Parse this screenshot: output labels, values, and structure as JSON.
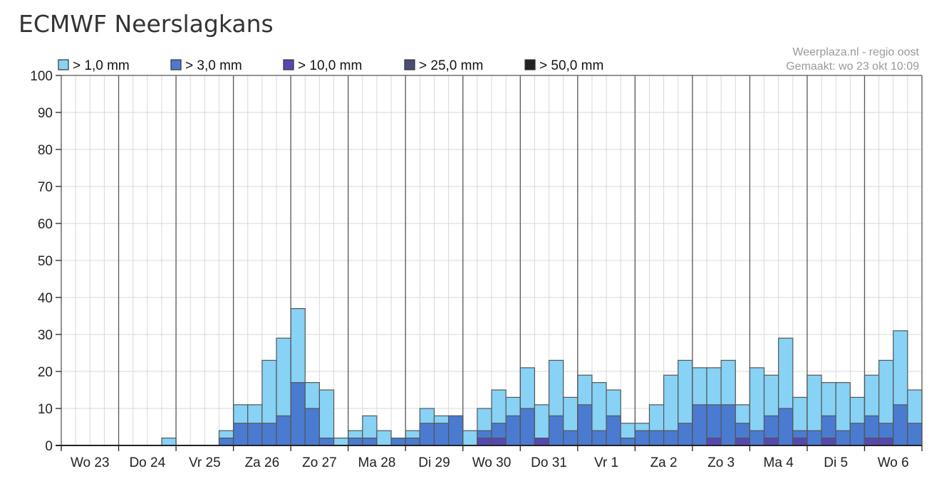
{
  "page": {
    "title": "ECMWF Neerslagkans"
  },
  "chart_data": {
    "type": "bar",
    "stacked": true,
    "title": "",
    "xlabel": "",
    "ylabel": "",
    "ylim": [
      0,
      100
    ],
    "y_ticks": [
      0,
      10,
      20,
      30,
      40,
      50,
      60,
      70,
      80,
      90,
      100
    ],
    "grid": true,
    "legend_position": "top-left",
    "source": "Weerplaza.nl - regio oost",
    "made": "Gemaakt: wo 23 okt 10:09",
    "periods_per_day": 4,
    "day_labels": [
      "Wo 23",
      "Do 24",
      "Vr 25",
      "Za 26",
      "Zo 27",
      "Ma 28",
      "Di 29",
      "Wo 30",
      "Do 31",
      "Vr 1",
      "Za 2",
      "Zo 3",
      "Ma 4",
      "Di 5",
      "Wo 6"
    ],
    "series": [
      {
        "name": "> 1,0 mm",
        "color": "#87d2f5",
        "values": [
          0,
          0,
          0,
          0,
          0,
          0,
          0,
          2,
          0,
          0,
          0,
          4,
          11,
          11,
          23,
          29,
          37,
          17,
          15,
          2,
          4,
          8,
          4,
          2,
          4,
          10,
          8,
          8,
          4,
          10,
          15,
          13,
          21,
          11,
          23,
          13,
          19,
          17,
          15,
          6,
          6,
          11,
          19,
          23,
          21,
          21,
          23,
          11,
          21,
          19,
          29,
          13,
          19,
          17,
          17,
          13,
          19,
          23,
          31,
          15
        ]
      },
      {
        "name": "> 3,0 mm",
        "color": "#4a7bd0",
        "values": [
          0,
          0,
          0,
          0,
          0,
          0,
          0,
          0,
          0,
          0,
          0,
          2,
          6,
          6,
          6,
          8,
          17,
          10,
          2,
          0,
          2,
          2,
          0,
          2,
          2,
          6,
          6,
          8,
          0,
          4,
          6,
          8,
          10,
          2,
          8,
          4,
          11,
          4,
          8,
          2,
          4,
          4,
          4,
          6,
          11,
          11,
          11,
          6,
          4,
          8,
          10,
          4,
          4,
          8,
          4,
          6,
          8,
          6,
          11,
          6
        ]
      },
      {
        "name": "> 10,0 mm",
        "color": "#5548b0",
        "values": [
          0,
          0,
          0,
          0,
          0,
          0,
          0,
          0,
          0,
          0,
          0,
          0,
          0,
          0,
          0,
          0,
          0,
          0,
          0,
          0,
          0,
          0,
          0,
          0,
          0,
          0,
          0,
          0,
          0,
          2,
          2,
          0,
          0,
          2,
          0,
          0,
          0,
          0,
          0,
          0,
          0,
          0,
          0,
          0,
          0,
          2,
          0,
          2,
          0,
          2,
          0,
          2,
          0,
          2,
          0,
          0,
          2,
          2,
          0,
          0
        ]
      },
      {
        "name": "> 25,0 mm",
        "color": "#4c4c78",
        "values": [
          0,
          0,
          0,
          0,
          0,
          0,
          0,
          0,
          0,
          0,
          0,
          0,
          0,
          0,
          0,
          0,
          0,
          0,
          0,
          0,
          0,
          0,
          0,
          0,
          0,
          0,
          0,
          0,
          0,
          0,
          0,
          0,
          0,
          0,
          0,
          0,
          0,
          0,
          0,
          0,
          0,
          0,
          0,
          0,
          0,
          0,
          0,
          0,
          0,
          0,
          0,
          0,
          0,
          0,
          0,
          0,
          0,
          0,
          0,
          0
        ]
      },
      {
        "name": "> 50,0 mm",
        "color": "#222222",
        "values": [
          0,
          0,
          0,
          0,
          0,
          0,
          0,
          0,
          0,
          0,
          0,
          0,
          0,
          0,
          0,
          0,
          0,
          0,
          0,
          0,
          0,
          0,
          0,
          0,
          0,
          0,
          0,
          0,
          0,
          0,
          0,
          0,
          0,
          0,
          0,
          0,
          0,
          0,
          0,
          0,
          0,
          0,
          0,
          0,
          0,
          0,
          0,
          0,
          0,
          0,
          0,
          0,
          0,
          0,
          0,
          0,
          0,
          0,
          0,
          0
        ]
      }
    ]
  }
}
